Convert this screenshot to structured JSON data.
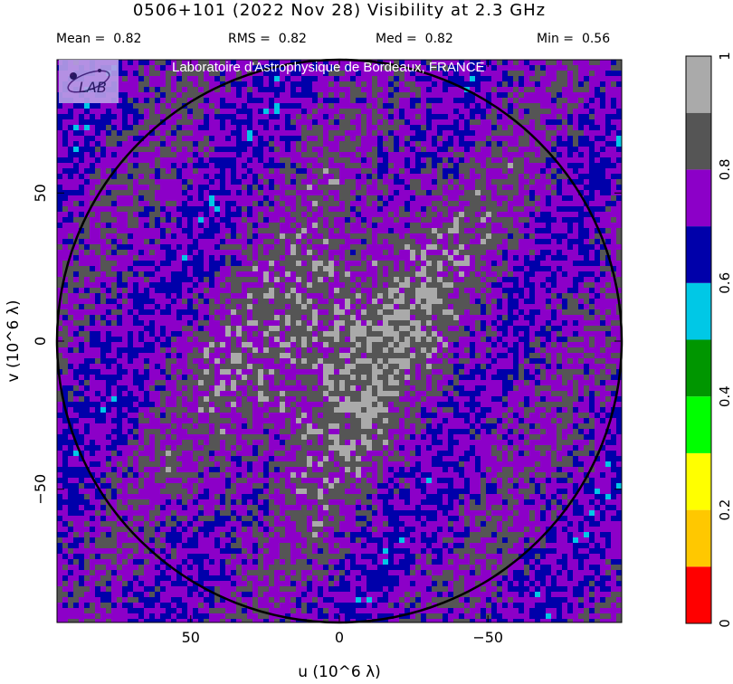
{
  "header": {
    "title": "0506+101  (2022 Nov 28)   Visibility at  2.3 GHz",
    "stats": [
      {
        "label": "Mean =",
        "value": "0.82"
      },
      {
        "label": "RMS =",
        "value": "0.82"
      },
      {
        "label": "Med =",
        "value": "0.82"
      },
      {
        "label": "Min =",
        "value": "0.56"
      }
    ]
  },
  "watermark": {
    "text": "Laboratoire d'Astrophysique de Bordeaux, FRANCE",
    "logo_text": "LAB"
  },
  "chart_data": {
    "type": "heatmap",
    "title": "0506+101  (2022 Nov 28)   Visibility at  2.3 GHz",
    "xlabel": "u  (10^6 λ)",
    "ylabel": "v  (10^6 λ)",
    "xlim": [
      95,
      -95
    ],
    "ylim": [
      -95,
      95
    ],
    "x_ticks": [
      50,
      0,
      -50
    ],
    "y_ticks": [
      50,
      0,
      -50
    ],
    "x_tick_labels": [
      "50",
      "0",
      "−50"
    ],
    "y_tick_labels": [
      "50",
      "0",
      "−50"
    ],
    "circle_radius": 95,
    "colorbar": {
      "min": 0,
      "max": 1,
      "tick_labels": [
        "0",
        "0.2",
        "0.4",
        "0.6",
        "0.8",
        "1"
      ],
      "tick_values": [
        0,
        0.2,
        0.4,
        0.6,
        0.8,
        1
      ],
      "levels": [
        {
          "from": 0.0,
          "to": 0.1,
          "color": "#ff0000"
        },
        {
          "from": 0.1,
          "to": 0.2,
          "color": "#ffc800"
        },
        {
          "from": 0.2,
          "to": 0.3,
          "color": "#ffff00"
        },
        {
          "from": 0.3,
          "to": 0.4,
          "color": "#00ff00"
        },
        {
          "from": 0.4,
          "to": 0.5,
          "color": "#009600"
        },
        {
          "from": 0.5,
          "to": 0.6,
          "color": "#00c8e6"
        },
        {
          "from": 0.6,
          "to": 0.7,
          "color": "#0000aa"
        },
        {
          "from": 0.7,
          "to": 0.8,
          "color": "#8c00c8"
        },
        {
          "from": 0.8,
          "to": 0.9,
          "color": "#555555"
        },
        {
          "from": 0.9,
          "to": 1.0,
          "color": "#aaaaaa"
        }
      ]
    },
    "stats": {
      "mean": 0.82,
      "rms": 0.82,
      "median": 0.82,
      "min": 0.56
    },
    "grid": false
  }
}
